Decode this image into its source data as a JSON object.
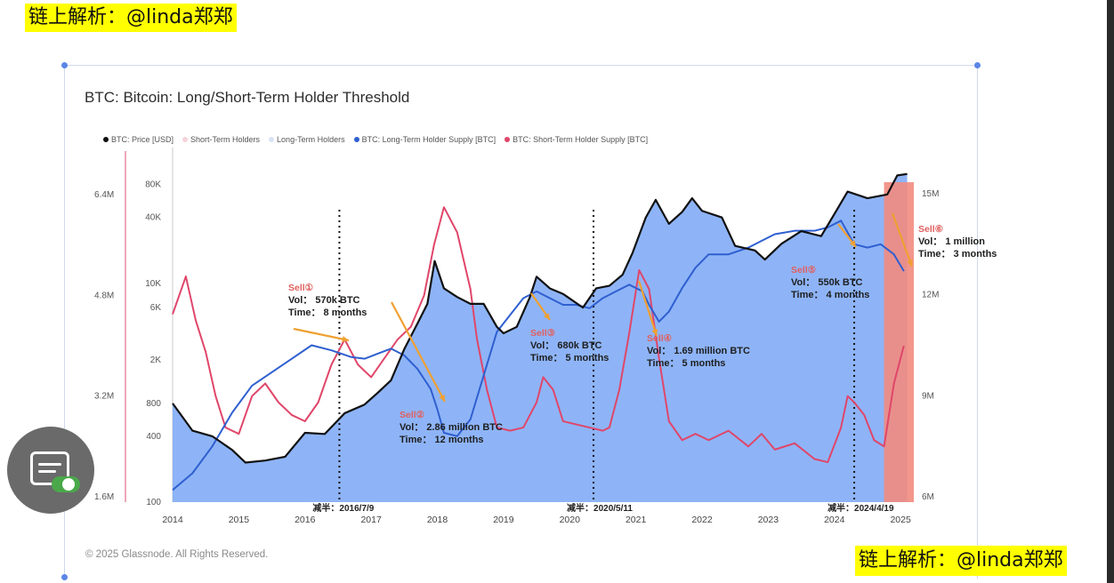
{
  "watermark_top": "链上解析：@linda郑郑",
  "watermark_bottom": "链上解析：@linda郑郑",
  "copyright": "© 2025 Glassnode. All Rights Reserved.",
  "colors": {
    "supply_fill": "#88b0f7",
    "lth_line": "#2f5fd0",
    "sth_line": "#e0466a",
    "price_line": "#111111",
    "arrow": "#f0a030",
    "recent_band": "#f28b80"
  },
  "chart_data": {
    "type": "line",
    "title": "BTC: Bitcoin: Long/Short-Term Holder Threshold",
    "legend_placement": "top",
    "legend": [
      {
        "label": "BTC: Price [USD]",
        "color": "#111111"
      },
      {
        "label": "Short-Term Holders",
        "color": "#f6d3d8"
      },
      {
        "label": "Long-Term Holders",
        "color": "#d9e2f6"
      },
      {
        "label": "BTC: Long-Term Holder Supply [BTC]",
        "color": "#2f5fd0"
      },
      {
        "label": "BTC: Short-Term Holder Supply [BTC]",
        "color": "#e0466a"
      }
    ],
    "x_ticks": [
      "2014",
      "2015",
      "2016",
      "2017",
      "2018",
      "2019",
      "2020",
      "2021",
      "2022",
      "2023",
      "2024",
      "2025"
    ],
    "price_axis_ticks": [
      "80K",
      "40K",
      "10K",
      "6K",
      "2K",
      "800",
      "400",
      "100"
    ],
    "price_axis_scale": "log",
    "sth_axis_ticks": [
      "6.4M",
      "4.8M",
      "3.2M",
      "1.6M"
    ],
    "lth_axis_ticks": [
      "15M",
      "12M",
      "9M",
      "6M"
    ],
    "grid": false,
    "series": [
      {
        "name": "BTC: Price [USD]",
        "x": [
          2014.0,
          2014.3,
          2014.6,
          2014.9,
          2015.1,
          2015.4,
          2015.7,
          2016.0,
          2016.3,
          2016.6,
          2016.9,
          2017.1,
          2017.3,
          2017.5,
          2017.7,
          2017.85,
          2017.96,
          2018.1,
          2018.3,
          2018.5,
          2018.7,
          2018.9,
          2019.0,
          2019.2,
          2019.4,
          2019.5,
          2019.7,
          2019.9,
          2020.2,
          2020.4,
          2020.6,
          2020.8,
          2020.95,
          2021.15,
          2021.3,
          2021.5,
          2021.7,
          2021.85,
          2022.0,
          2022.3,
          2022.5,
          2022.8,
          2022.95,
          2023.2,
          2023.5,
          2023.8,
          2024.0,
          2024.2,
          2024.5,
          2024.8,
          2024.95,
          2025.1
        ],
        "values": [
          800,
          450,
          400,
          300,
          230,
          240,
          260,
          430,
          420,
          650,
          780,
          1000,
          1300,
          2500,
          4300,
          6500,
          16000,
          9000,
          7500,
          6500,
          6500,
          4000,
          3500,
          4000,
          7500,
          11500,
          9000,
          8000,
          6000,
          9000,
          9500,
          12000,
          19000,
          40000,
          58000,
          35000,
          45000,
          60000,
          46000,
          40000,
          22000,
          20000,
          16500,
          23000,
          30000,
          27000,
          43000,
          69000,
          60000,
          65000,
          97000,
          100000
        ]
      },
      {
        "name": "BTC: Long-Term Holder Supply [BTC]",
        "x": [
          2014.0,
          2014.3,
          2014.6,
          2014.9,
          2015.2,
          2015.5,
          2015.8,
          2016.1,
          2016.4,
          2016.7,
          2016.9,
          2017.1,
          2017.3,
          2017.5,
          2017.7,
          2017.9,
          2018.0,
          2018.1,
          2018.3,
          2018.5,
          2018.7,
          2018.9,
          2019.1,
          2019.3,
          2019.5,
          2019.7,
          2019.9,
          2020.1,
          2020.3,
          2020.5,
          2020.7,
          2020.9,
          2021.1,
          2021.2,
          2021.35,
          2021.5,
          2021.7,
          2021.9,
          2022.1,
          2022.4,
          2022.7,
          2022.9,
          2023.1,
          2023.4,
          2023.7,
          2023.9,
          2024.1,
          2024.3,
          2024.5,
          2024.7,
          2024.9,
          2025.05
        ],
        "values": [
          6200000,
          6700000,
          7500000,
          8500000,
          9300000,
          9700000,
          10100000,
          10500000,
          10350000,
          10150000,
          10100000,
          10250000,
          10400000,
          10200000,
          9800000,
          9200000,
          8600000,
          7900000,
          7800000,
          8300000,
          9600000,
          10900000,
          11400000,
          11900000,
          12100000,
          11900000,
          11700000,
          11700000,
          11600000,
          11900000,
          12100000,
          12300000,
          12100000,
          11700000,
          11200000,
          11500000,
          12200000,
          12800000,
          13200000,
          13200000,
          13400000,
          13600000,
          13800000,
          13900000,
          13900000,
          14000000,
          14200000,
          13500000,
          13400000,
          13500000,
          13200000,
          12700000
        ]
      },
      {
        "name": "BTC: Short-Term Holder Supply [BTC]",
        "x": [
          2014.0,
          2014.1,
          2014.2,
          2014.35,
          2014.5,
          2014.65,
          2014.8,
          2015.0,
          2015.2,
          2015.4,
          2015.6,
          2015.8,
          2016.0,
          2016.2,
          2016.4,
          2016.6,
          2016.8,
          2017.0,
          2017.2,
          2017.4,
          2017.6,
          2017.8,
          2017.95,
          2018.1,
          2018.3,
          2018.5,
          2018.6,
          2018.75,
          2018.9,
          2019.1,
          2019.3,
          2019.5,
          2019.6,
          2019.75,
          2019.9,
          2020.1,
          2020.3,
          2020.5,
          2020.6,
          2020.75,
          2020.9,
          2021.05,
          2021.2,
          2021.35,
          2021.5,
          2021.7,
          2021.9,
          2022.1,
          2022.4,
          2022.7,
          2022.9,
          2023.1,
          2023.4,
          2023.7,
          2023.9,
          2024.1,
          2024.2,
          2024.3,
          2024.45,
          2024.6,
          2024.75,
          2024.9,
          2025.05
        ],
        "values": [
          4500000,
          4800000,
          5100000,
          4400000,
          3900000,
          3200000,
          2700000,
          2600000,
          3200000,
          3400000,
          3100000,
          2900000,
          2800000,
          3100000,
          3700000,
          4100000,
          3700000,
          3500000,
          3800000,
          4100000,
          4300000,
          4800000,
          5600000,
          6200000,
          5800000,
          4900000,
          4100000,
          3300000,
          2700000,
          2650000,
          2700000,
          3100000,
          3500000,
          3300000,
          2800000,
          2750000,
          2700000,
          2650000,
          2700000,
          3300000,
          4200000,
          5200000,
          4900000,
          3800000,
          2800000,
          2500000,
          2600000,
          2500000,
          2650000,
          2400000,
          2600000,
          2350000,
          2450000,
          2200000,
          2150000,
          2700000,
          3200000,
          3100000,
          2900000,
          2500000,
          2400000,
          3400000,
          4000000
        ]
      }
    ],
    "halvings": [
      {
        "label": "减半：2016/7/9",
        "x": 2016.52
      },
      {
        "label": "减半：2020/5/11",
        "x": 2020.36
      },
      {
        "label": "减半：2024/4/19",
        "x": 2024.3
      }
    ],
    "annotations": [
      {
        "sell": "Sell①",
        "vol": "Vol：  570k BTC",
        "time": "Time：  8 months"
      },
      {
        "sell": "Sell②",
        "vol": "Vol：  2.86 million BTC",
        "time": "Time：  12 months"
      },
      {
        "sell": "Sell③",
        "vol": "Vol：  680k BTC",
        "time": "Time：  5 months"
      },
      {
        "sell": "Sell④",
        "vol": "Vol：  1.69 million BTC",
        "time": "Time：  5 months"
      },
      {
        "sell": "Sell⑤",
        "vol": "Vol：  550k BTC",
        "time": "Time：  4 months"
      },
      {
        "sell": "Sell⑥",
        "vol": "Vol：  1 million",
        "time": "Time：  3 months"
      }
    ]
  }
}
